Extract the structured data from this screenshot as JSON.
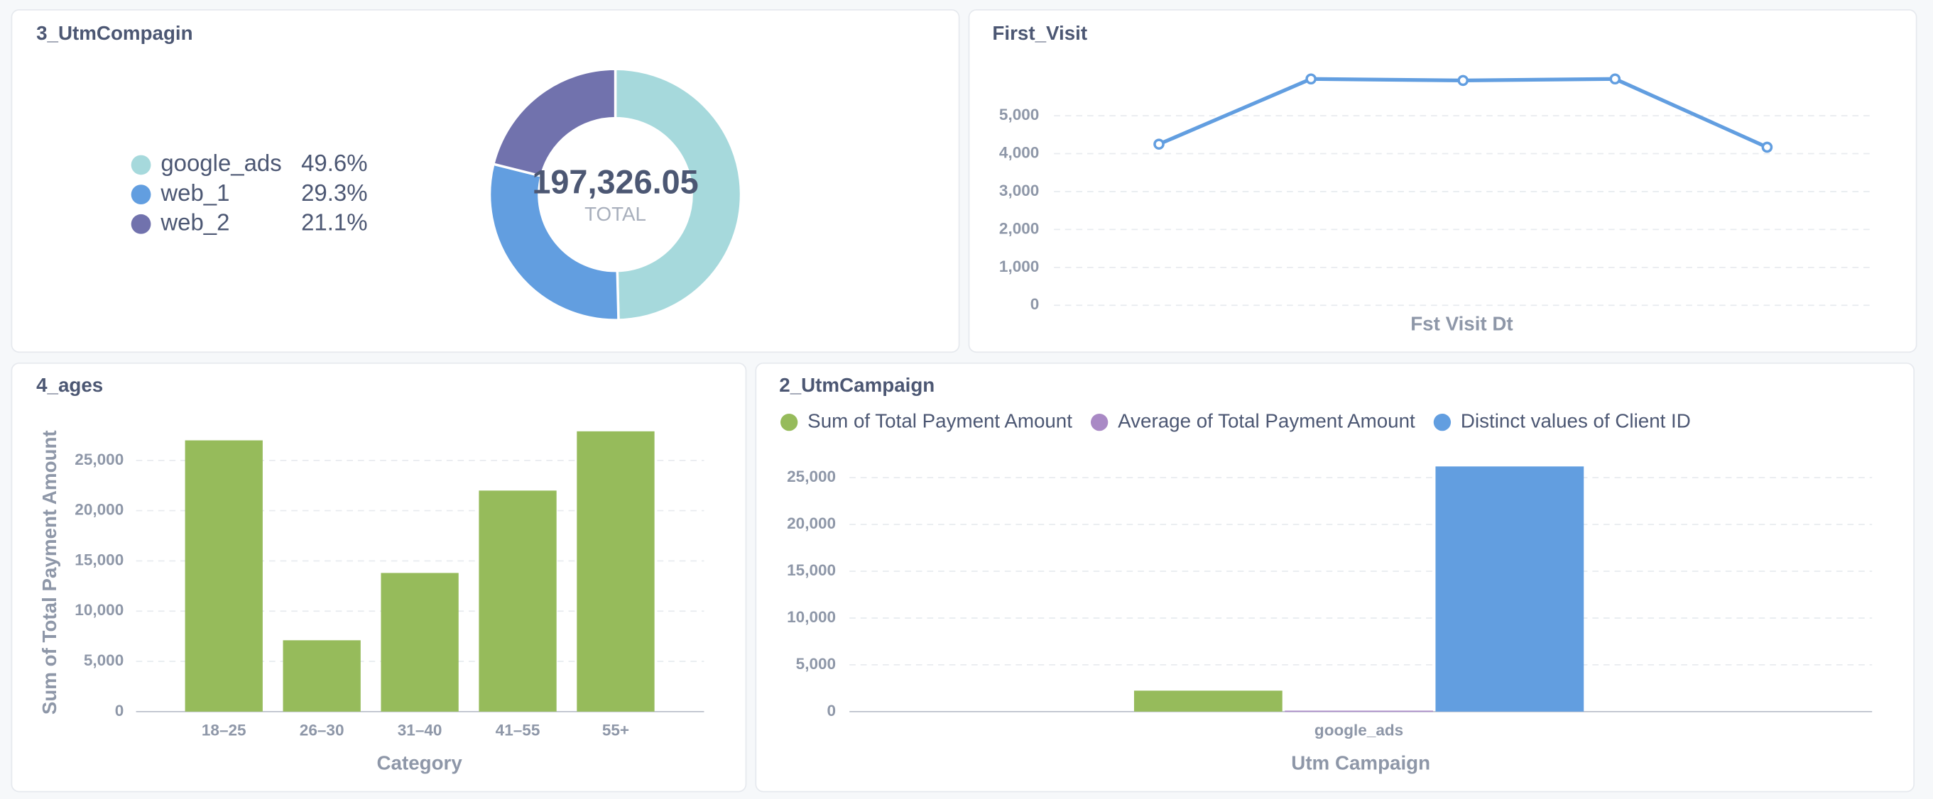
{
  "chart_data": [
    {
      "type": "pie",
      "title": "3_UtmCompagin",
      "categories": [
        "google_ads",
        "web_1",
        "web_2"
      ],
      "values": [
        49.6,
        29.3,
        21.1
      ],
      "value_labels": [
        "49.6%",
        "29.3%",
        "21.1%"
      ],
      "colors": [
        "#a6d9dc",
        "#629ee0",
        "#7172ad"
      ],
      "center_label": "197,326.05",
      "center_caption": "TOTAL"
    },
    {
      "type": "line",
      "title": "First_Visit",
      "x_label": "Fst Visit Dt",
      "categories": [
        null,
        null,
        null,
        null,
        null
      ],
      "values": [
        4250,
        5970,
        5930,
        5970,
        4170
      ],
      "color": "#629ee0",
      "ylim": [
        0,
        6000
      ],
      "yticks": [
        0,
        {
          "value": 1000,
          "label": "1,000"
        },
        {
          "value": 2000,
          "label": "2,000"
        },
        {
          "value": 3000,
          "label": "3,000"
        },
        {
          "value": 4000,
          "label": "4,000"
        },
        {
          "value": 5000,
          "label": "5,000"
        }
      ],
      "grid": true
    },
    {
      "type": "bar",
      "title": "4_ages",
      "x_label": "Category",
      "y_label": "Sum of Total Payment Amount",
      "categories": [
        "18–25",
        "26–30",
        "31–40",
        "41–55",
        "55+"
      ],
      "values": [
        27000,
        7100,
        13800,
        22000,
        27900
      ],
      "color": "#96bb5b",
      "ylim": [
        0,
        30000
      ],
      "yticks": [
        0,
        {
          "value": 5000,
          "label": "5,000"
        },
        {
          "value": 10000,
          "label": "10,000"
        },
        {
          "value": 15000,
          "label": "15,000"
        },
        {
          "value": 20000,
          "label": "20,000"
        },
        {
          "value": 25000,
          "label": "25,000"
        }
      ],
      "grid": true
    },
    {
      "type": "grouped_bar",
      "title": "2_UtmCampaign",
      "x_label": "Utm Campaign",
      "categories": [
        "google_ads"
      ],
      "series": [
        {
          "name": "Sum of Total Payment Amount",
          "color": "#96bb5b",
          "values": [
            2240
          ]
        },
        {
          "name": "Average of Total Payment Amount",
          "color": "#a989c5",
          "values": [
            100
          ]
        },
        {
          "name": "Distinct values of Client ID",
          "color": "#629ee0",
          "values": [
            26200
          ]
        }
      ],
      "ylim": [
        0,
        28000
      ],
      "yticks": [
        0,
        {
          "value": 5000,
          "label": "5,000"
        },
        {
          "value": 10000,
          "label": "10,000"
        },
        {
          "value": 15000,
          "label": "15,000"
        },
        {
          "value": 20000,
          "label": "20,000"
        },
        {
          "value": 25000,
          "label": "25,000"
        }
      ],
      "grid": true
    }
  ]
}
